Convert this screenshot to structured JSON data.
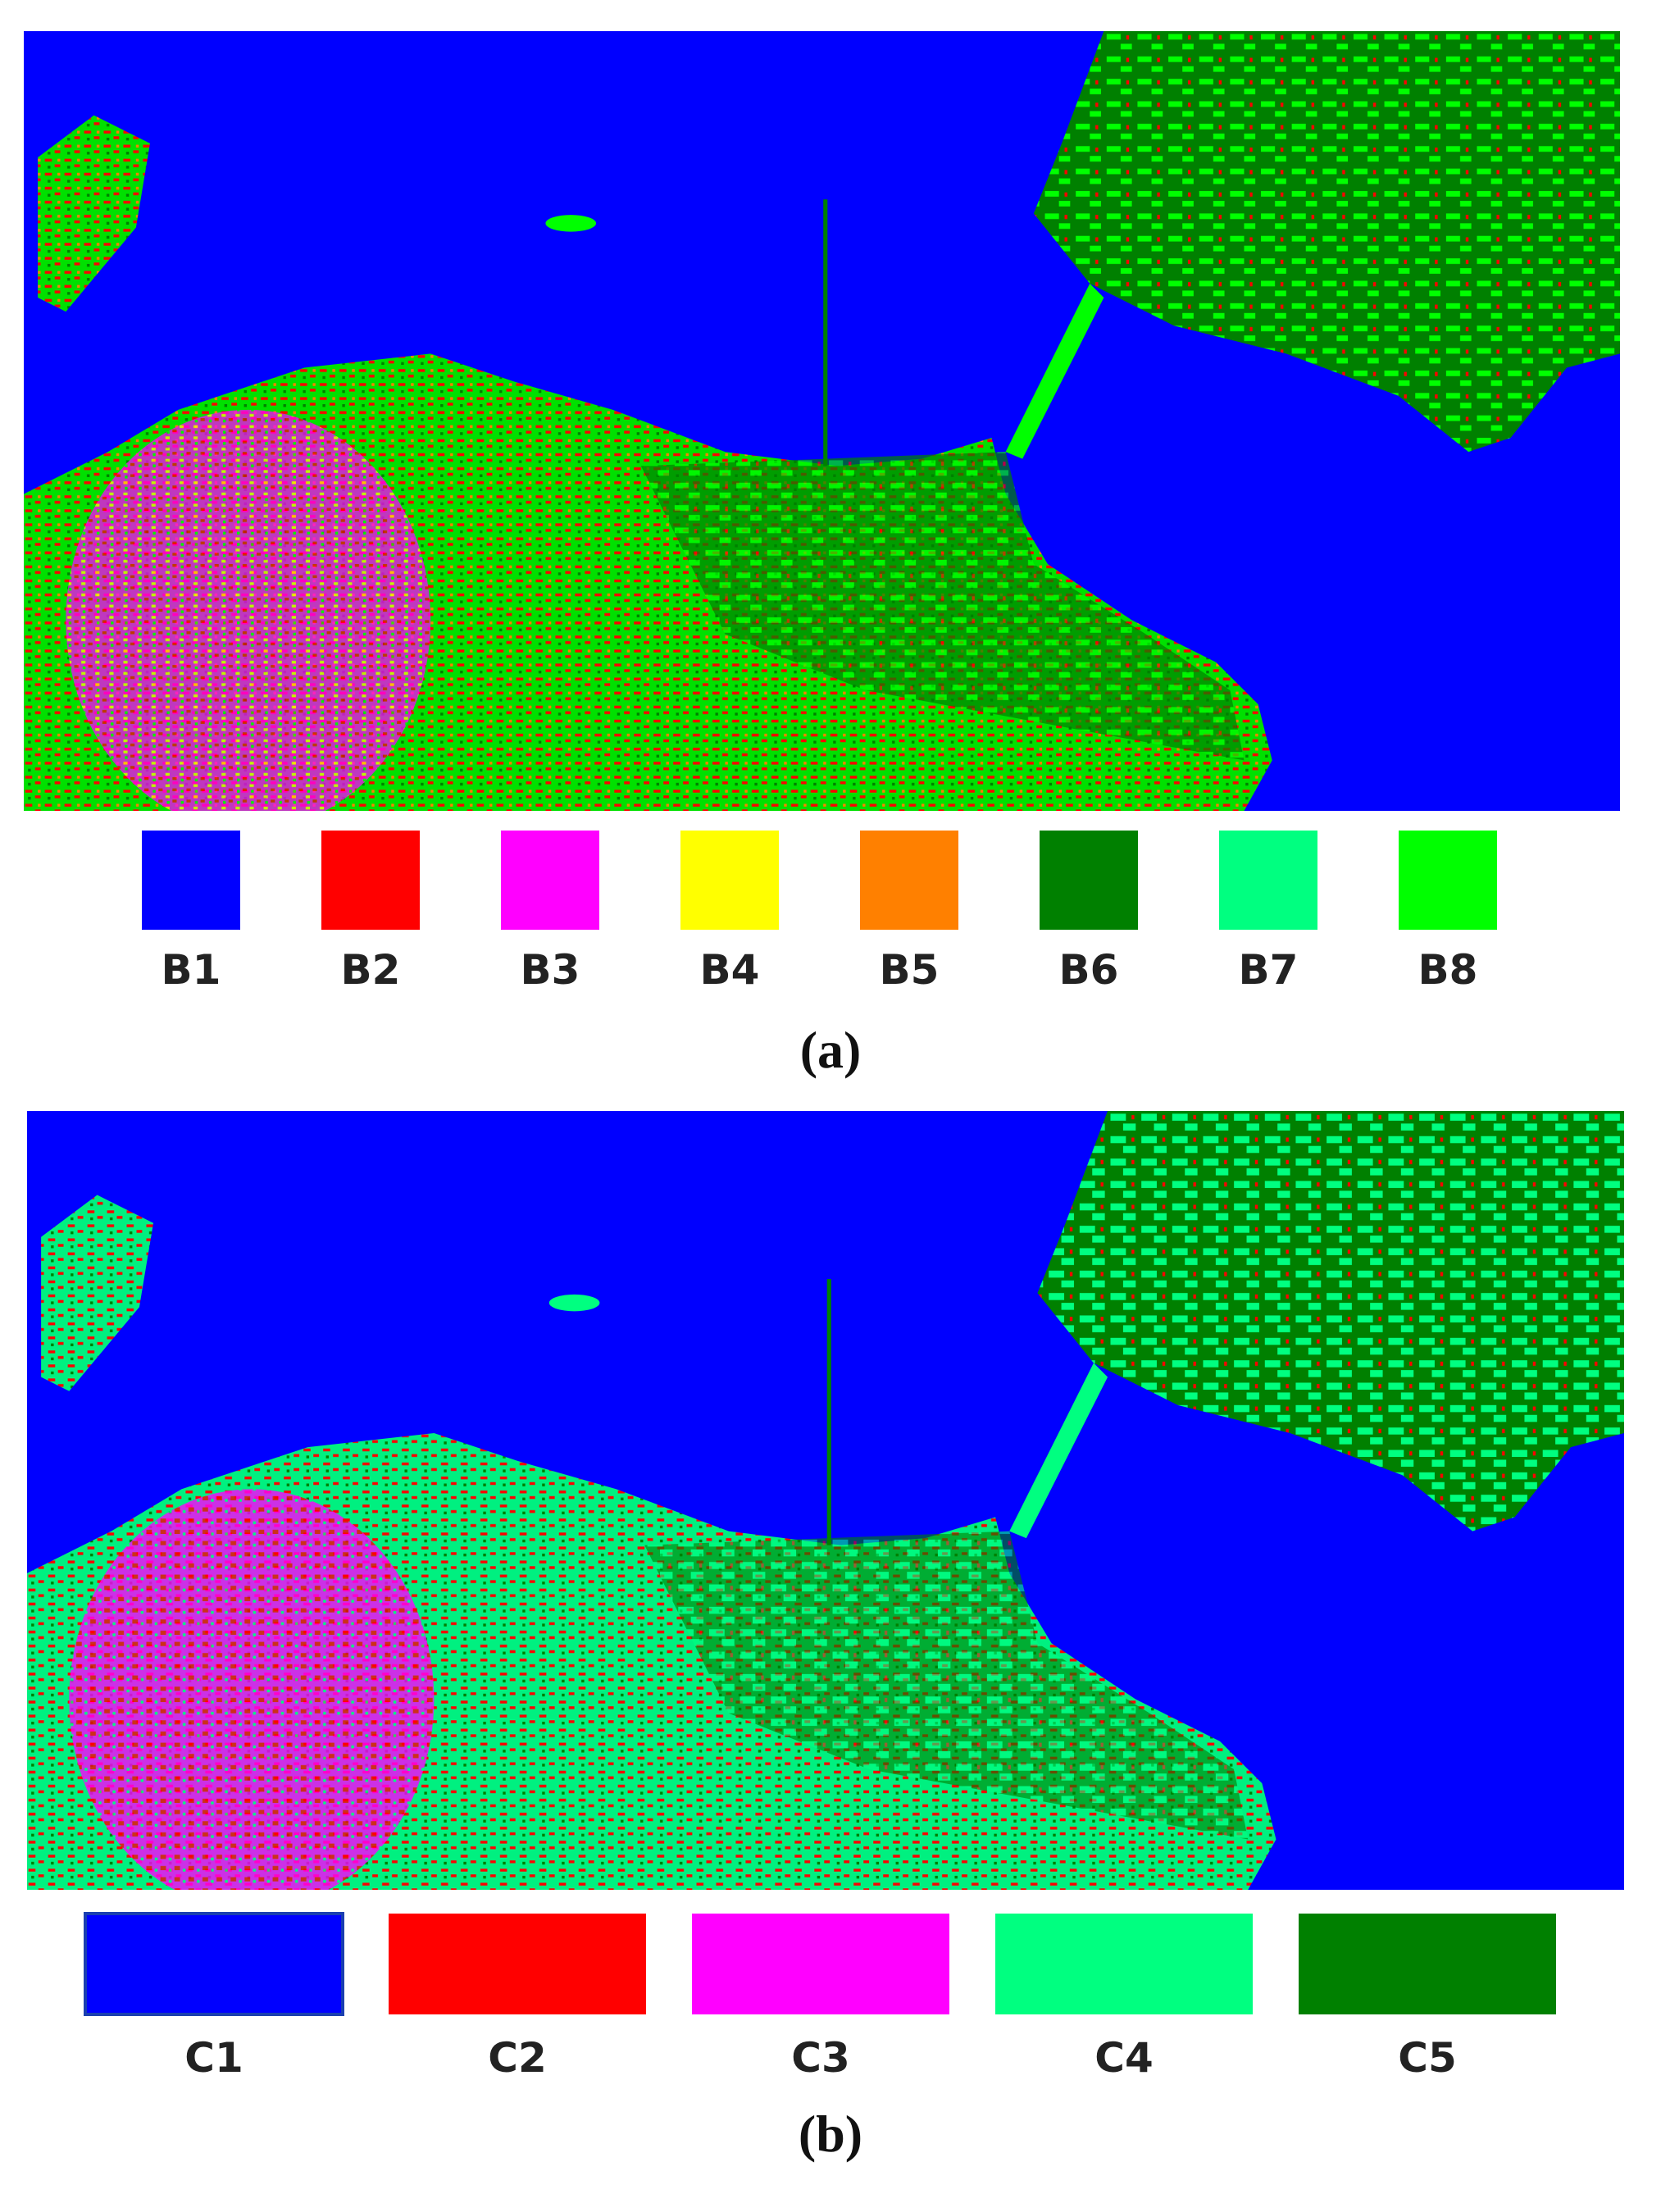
{
  "panels": [
    {
      "caption": "(a)",
      "legend": [
        {
          "label": "B1",
          "color": "#0000ff"
        },
        {
          "label": "B2",
          "color": "#ff0000"
        },
        {
          "label": "B3",
          "color": "#ff00ff"
        },
        {
          "label": "B4",
          "color": "#ffff00"
        },
        {
          "label": "B5",
          "color": "#ff8000"
        },
        {
          "label": "B6",
          "color": "#008000"
        },
        {
          "label": "B7",
          "color": "#00ff80"
        },
        {
          "label": "B8",
          "color": "#00ff00"
        }
      ]
    },
    {
      "caption": "(b)",
      "legend": [
        {
          "label": "C1",
          "color": "#0000ff"
        },
        {
          "label": "C2",
          "color": "#ff0000"
        },
        {
          "label": "C3",
          "color": "#ff00ff"
        },
        {
          "label": "C4",
          "color": "#00ff80"
        },
        {
          "label": "C5",
          "color": "#008000"
        }
      ]
    }
  ]
}
